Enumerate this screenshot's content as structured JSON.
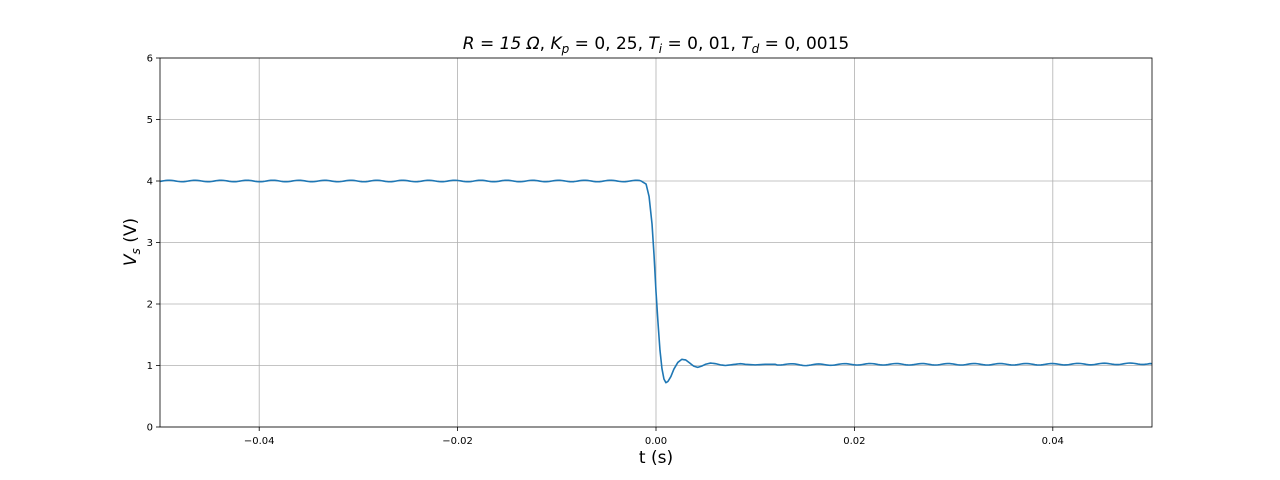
{
  "chart_data": {
    "type": "line",
    "title": {
      "R_text": "R = 15 Ω",
      "Kp_text": "K",
      "Kp_sub": "p",
      "Kp_value": " = 0, 25",
      "Ti_text": "T",
      "Ti_sub": "i",
      "Ti_value": " = 0, 01",
      "Td_text": "T",
      "Td_sub": "d",
      "Td_value": " = 0, 0015"
    },
    "xlabel": "t (s)",
    "ylabel_main": "V",
    "ylabel_sub": "s",
    "ylabel_unit": " (V)",
    "xlim": [
      -0.05,
      0.05
    ],
    "ylim": [
      0,
      6
    ],
    "xticks": [
      -0.04,
      -0.02,
      0.0,
      0.02,
      0.04
    ],
    "xtick_labels": [
      "−0.04",
      "−0.02",
      "0.00",
      "0.02",
      "0.04"
    ],
    "yticks": [
      0,
      1,
      2,
      3,
      4,
      5,
      6
    ],
    "ytick_labels": [
      "0",
      "1",
      "2",
      "3",
      "4",
      "5",
      "6"
    ],
    "grid": true,
    "line_color": "#1f77b4",
    "series": [
      {
        "x": [
          -0.05,
          -0.0015,
          -0.001,
          -0.0007,
          -0.0004,
          -0.0002,
          0.0,
          0.0002,
          0.0004,
          0.0006,
          0.0008,
          0.001,
          0.0012,
          0.0015,
          0.0018,
          0.0022,
          0.0026,
          0.003,
          0.0034,
          0.0038,
          0.0042,
          0.0046,
          0.005,
          0.0055,
          0.006,
          0.0065,
          0.007,
          0.0075,
          0.008,
          0.0085,
          0.009,
          0.01,
          0.011,
          0.013,
          0.015,
          0.02,
          0.03,
          0.04,
          0.05
        ],
        "y": [
          4.0,
          4.0,
          3.95,
          3.75,
          3.3,
          2.8,
          2.2,
          1.7,
          1.25,
          0.95,
          0.78,
          0.72,
          0.74,
          0.82,
          0.94,
          1.05,
          1.1,
          1.09,
          1.04,
          0.99,
          0.97,
          0.99,
          1.02,
          1.04,
          1.03,
          1.01,
          1.0,
          1.01,
          1.02,
          1.03,
          1.02,
          1.01,
          1.02,
          1.02,
          1.01,
          1.02,
          1.02,
          1.02,
          1.03
        ]
      }
    ]
  }
}
